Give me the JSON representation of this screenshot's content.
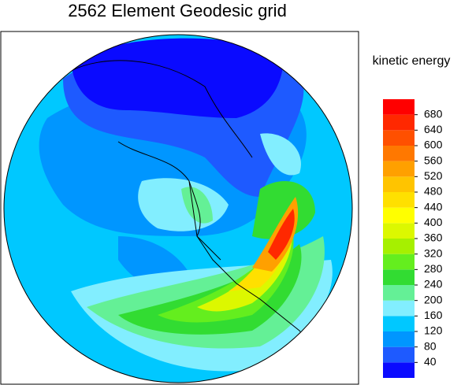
{
  "chart_data": {
    "type": "contour",
    "title": "2562 Element Geodesic grid",
    "colorbar_label": "kinetic energy",
    "levels": [
      40,
      80,
      120,
      160,
      200,
      240,
      280,
      320,
      360,
      400,
      440,
      480,
      520,
      560,
      600,
      640,
      680
    ],
    "colors": [
      "#0a0aff",
      "#1e5aff",
      "#0096ff",
      "#00c8ff",
      "#82eeff",
      "#64f096",
      "#32dc32",
      "#64ee1e",
      "#a6f000",
      "#dcf800",
      "#ffff00",
      "#ffe000",
      "#ffc400",
      "#ffa000",
      "#ff7800",
      "#ff5000",
      "#ff2800",
      "#ff0000"
    ]
  }
}
